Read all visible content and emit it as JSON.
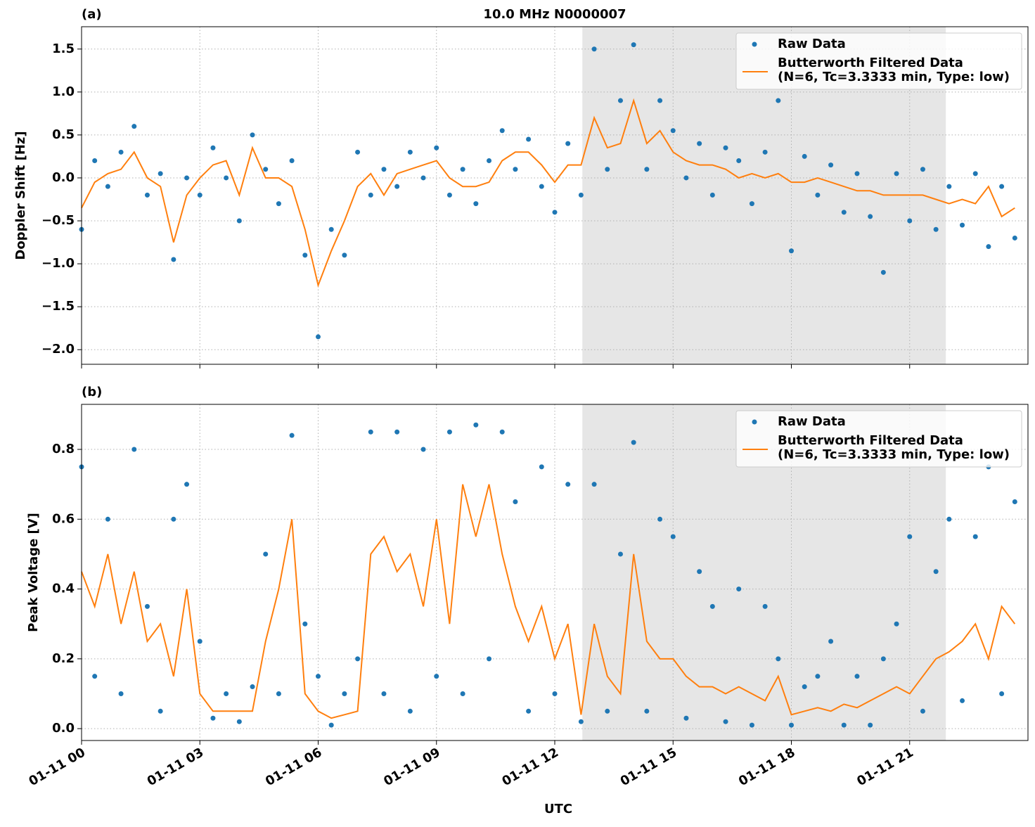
{
  "chart_data": [
    {
      "type": "scatter",
      "panel_label": "(a)",
      "title": "10.0 MHz N0000007",
      "ylabel": "Doppler Shift [Hz]",
      "x": [
        0,
        20,
        40,
        60,
        80,
        100,
        120,
        140,
        160,
        180,
        200,
        220,
        240,
        260,
        280,
        300,
        320,
        340,
        360,
        380,
        400,
        420,
        440,
        460,
        480,
        500,
        520,
        540,
        560,
        580,
        600,
        620,
        640,
        660,
        680,
        700,
        720,
        740,
        760,
        780,
        800,
        820,
        840,
        860,
        880,
        900,
        920,
        940,
        960,
        980,
        1000,
        1020,
        1040,
        1060,
        1080,
        1100,
        1120,
        1140,
        1160,
        1180,
        1200,
        1220,
        1240,
        1260,
        1280,
        1300,
        1320,
        1340,
        1360,
        1380,
        1400,
        1420
      ],
      "xlim": [
        0,
        1440
      ],
      "xticks": [
        0,
        180,
        360,
        540,
        720,
        900,
        1080,
        1260
      ],
      "ylim": [
        -2.17,
        1.76
      ],
      "yticks": [
        {
          "value": -2,
          "label": "−2.0"
        },
        {
          "value": -1.5,
          "label": "−1.5"
        },
        {
          "value": -1,
          "label": "−1.0"
        },
        {
          "value": -0.5,
          "label": "−0.5"
        },
        {
          "value": 0,
          "label": "0.0"
        },
        0.5,
        {
          "value": 1,
          "label": "1.0"
        },
        1.5
      ],
      "grid": true,
      "shaded_region": [
        762,
        1315
      ],
      "legend": "upper right",
      "series": [
        {
          "name": "Raw Data",
          "style": "point",
          "color": "#1f77b4",
          "values": [
            -0.6,
            0.2,
            -0.1,
            0.3,
            0.6,
            -0.2,
            0.05,
            -0.95,
            0.0,
            -0.2,
            0.35,
            0.0,
            -0.5,
            0.5,
            0.1,
            -0.3,
            0.2,
            -0.9,
            -1.85,
            -0.6,
            -0.9,
            0.3,
            -0.2,
            0.1,
            -0.1,
            0.3,
            0.0,
            0.35,
            -0.2,
            0.1,
            -0.3,
            0.2,
            0.55,
            0.1,
            0.45,
            -0.1,
            -0.4,
            0.4,
            -0.2,
            1.5,
            0.1,
            0.9,
            1.55,
            0.1,
            0.9,
            0.55,
            0.0,
            0.4,
            -0.2,
            0.35,
            0.2,
            -0.3,
            0.3,
            0.9,
            -0.85,
            0.25,
            -0.2,
            0.15,
            -0.4,
            0.05,
            -0.45,
            -1.1,
            0.05,
            -0.5,
            0.1,
            -0.6,
            -0.1,
            -0.55,
            0.05,
            -0.8,
            -0.1,
            -0.7
          ]
        },
        {
          "name": "Butterworth Filtered Data",
          "name_detail": "(N=6, Tc=3.3333 min, Type: low)",
          "style": "line",
          "color": "#ff7f0e",
          "values": [
            -0.35,
            -0.05,
            0.05,
            0.1,
            0.3,
            0.0,
            -0.1,
            -0.75,
            -0.2,
            0.0,
            0.15,
            0.2,
            -0.2,
            0.35,
            0.0,
            0.0,
            -0.1,
            -0.6,
            -1.25,
            -0.85,
            -0.5,
            -0.1,
            0.05,
            -0.2,
            0.05,
            0.1,
            0.15,
            0.2,
            0.0,
            -0.1,
            -0.1,
            -0.05,
            0.2,
            0.3,
            0.3,
            0.15,
            -0.05,
            0.15,
            0.15,
            0.7,
            0.35,
            0.4,
            0.9,
            0.4,
            0.55,
            0.3,
            0.2,
            0.15,
            0.15,
            0.1,
            0.0,
            0.05,
            0.0,
            0.05,
            -0.05,
            -0.05,
            0.0,
            -0.05,
            -0.1,
            -0.15,
            -0.15,
            -0.2,
            -0.2,
            -0.2,
            -0.2,
            -0.25,
            -0.3,
            -0.25,
            -0.3,
            -0.1,
            -0.45,
            -0.35
          ]
        }
      ]
    },
    {
      "type": "scatter",
      "panel_label": "(b)",
      "ylabel": "Peak Voltage [V]",
      "xlabel": "UTC",
      "x": [
        0,
        20,
        40,
        60,
        80,
        100,
        120,
        140,
        160,
        180,
        200,
        220,
        240,
        260,
        280,
        300,
        320,
        340,
        360,
        380,
        400,
        420,
        440,
        460,
        480,
        500,
        520,
        540,
        560,
        580,
        600,
        620,
        640,
        660,
        680,
        700,
        720,
        740,
        760,
        780,
        800,
        820,
        840,
        860,
        880,
        900,
        920,
        940,
        960,
        980,
        1000,
        1020,
        1040,
        1060,
        1080,
        1100,
        1120,
        1140,
        1160,
        1180,
        1200,
        1220,
        1240,
        1260,
        1280,
        1300,
        1320,
        1340,
        1360,
        1380,
        1400,
        1420
      ],
      "xlim": [
        0,
        1440
      ],
      "xticks": [
        {
          "value": 0,
          "label": "01-11 00"
        },
        {
          "value": 180,
          "label": "01-11 03"
        },
        {
          "value": 360,
          "label": "01-11 06"
        },
        {
          "value": 540,
          "label": "01-11 09"
        },
        {
          "value": 720,
          "label": "01-11 12"
        },
        {
          "value": 900,
          "label": "01-11 15"
        },
        {
          "value": 1080,
          "label": "01-11 18"
        },
        {
          "value": 1260,
          "label": "01-11 21"
        }
      ],
      "ylim": [
        -0.034,
        0.929
      ],
      "yticks": [
        {
          "value": 0,
          "label": "0.0"
        },
        0.2,
        0.4,
        0.6,
        0.8
      ],
      "grid": true,
      "shaded_region": [
        762,
        1315
      ],
      "legend": "upper right",
      "series": [
        {
          "name": "Raw Data",
          "style": "point",
          "color": "#1f77b4",
          "values": [
            0.75,
            0.15,
            0.6,
            0.1,
            0.8,
            0.35,
            0.05,
            0.6,
            0.7,
            0.25,
            0.03,
            0.1,
            0.02,
            0.12,
            0.5,
            0.1,
            0.84,
            0.3,
            0.15,
            0.01,
            0.1,
            0.2,
            0.85,
            0.1,
            0.85,
            0.05,
            0.8,
            0.15,
            0.85,
            0.1,
            0.87,
            0.2,
            0.85,
            0.65,
            0.05,
            0.75,
            0.1,
            0.7,
            0.02,
            0.7,
            0.05,
            0.5,
            0.82,
            0.05,
            0.6,
            0.55,
            0.03,
            0.45,
            0.35,
            0.02,
            0.4,
            0.01,
            0.35,
            0.2,
            0.01,
            0.12,
            0.15,
            0.25,
            0.01,
            0.15,
            0.01,
            0.2,
            0.3,
            0.55,
            0.05,
            0.45,
            0.6,
            0.08,
            0.55,
            0.75,
            0.1,
            0.65
          ]
        },
        {
          "name": "Butterworth Filtered Data",
          "name_detail": "(N=6, Tc=3.3333 min, Type: low)",
          "style": "line",
          "color": "#ff7f0e",
          "values": [
            0.45,
            0.35,
            0.5,
            0.3,
            0.45,
            0.25,
            0.3,
            0.15,
            0.4,
            0.1,
            0.05,
            0.05,
            0.05,
            0.05,
            0.25,
            0.4,
            0.6,
            0.1,
            0.05,
            0.03,
            0.04,
            0.05,
            0.5,
            0.55,
            0.45,
            0.5,
            0.35,
            0.6,
            0.3,
            0.7,
            0.55,
            0.7,
            0.5,
            0.35,
            0.25,
            0.35,
            0.2,
            0.3,
            0.04,
            0.3,
            0.15,
            0.1,
            0.5,
            0.25,
            0.2,
            0.2,
            0.15,
            0.12,
            0.12,
            0.1,
            0.12,
            0.1,
            0.08,
            0.15,
            0.04,
            0.05,
            0.06,
            0.05,
            0.07,
            0.06,
            0.08,
            0.1,
            0.12,
            0.1,
            0.15,
            0.2,
            0.22,
            0.25,
            0.3,
            0.2,
            0.35,
            0.3
          ]
        }
      ]
    }
  ]
}
